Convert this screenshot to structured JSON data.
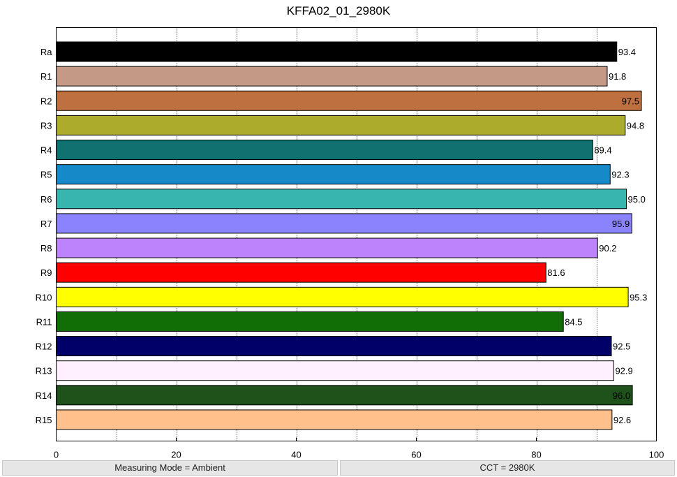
{
  "chart_data": {
    "type": "bar",
    "orientation": "horizontal",
    "title": "KFFA02_01_2980K",
    "xlabel": "",
    "ylabel": "",
    "xlim": [
      0,
      100
    ],
    "xticks": [
      0,
      20,
      40,
      60,
      80,
      100
    ],
    "grid": "vertical dotted",
    "categories": [
      "Ra",
      "R1",
      "R2",
      "R3",
      "R4",
      "R5",
      "R6",
      "R7",
      "R8",
      "R9",
      "R10",
      "R11",
      "R12",
      "R13",
      "R14",
      "R15"
    ],
    "values": [
      93.4,
      91.8,
      97.5,
      94.8,
      89.4,
      92.3,
      95.0,
      95.9,
      90.2,
      81.6,
      95.3,
      84.5,
      92.5,
      92.9,
      96.0,
      92.6
    ],
    "value_labels": [
      "93.4",
      "91.8",
      "97.5",
      "94.8",
      "89.4",
      "92.3",
      "95.0",
      "95.9",
      "90.2",
      "81.6",
      "95.3",
      "84.5",
      "92.5",
      "92.9",
      "96.0",
      "92.6"
    ],
    "colors": [
      "#000000",
      "#c49a86",
      "#bf7041",
      "#adab2c",
      "#117170",
      "#168ac8",
      "#37b5ae",
      "#8a83fd",
      "#bd83fd",
      "#ff0000",
      "#ffff00",
      "#116d05",
      "#000068",
      "#fff0ff",
      "#1e521a",
      "#ffc08b"
    ]
  },
  "status": {
    "left": "Measuring Mode = Ambient",
    "right": "CCT = 2980K"
  }
}
